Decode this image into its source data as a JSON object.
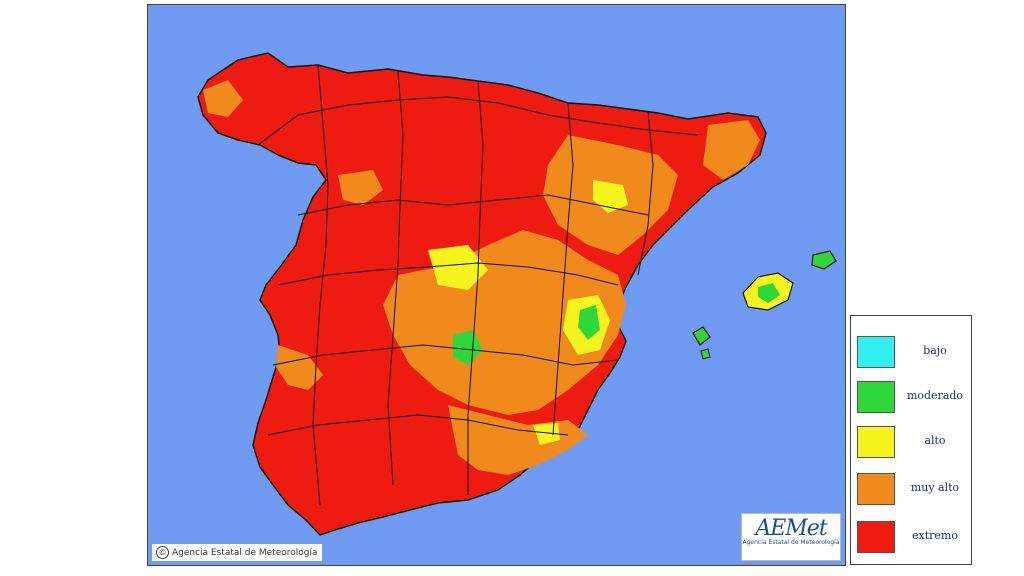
{
  "map": {
    "background_color": "#6f9cf2",
    "copyright": "Agencia Estatal de Meteorología",
    "copyright_icon": "copyright-icon",
    "logo": {
      "text": "AEMet",
      "subtitle": "Agencia Estatal de Meteorología"
    }
  },
  "legend": {
    "items": [
      {
        "label": "bajo",
        "color": "#33f0f0"
      },
      {
        "label": "moderado",
        "color": "#2fd83a"
      },
      {
        "label": "alto",
        "color": "#f5f51d"
      },
      {
        "label": "muy alto",
        "color": "#f08a1c"
      },
      {
        "label": "extremo",
        "color": "#ee1b10"
      }
    ]
  }
}
